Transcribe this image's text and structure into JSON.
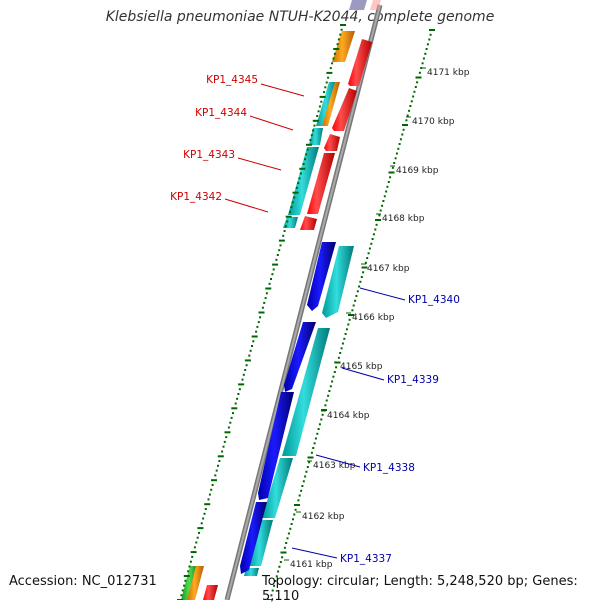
{
  "title": "Klebsiella pneumoniae NTUH-K2044, complete genome",
  "accession": "Accession: NC_012731",
  "topology": "Topology: circular; Length: 5,248,520 bp; Genes: 5,110",
  "ticks": [
    "4171 kbp",
    "4170 kbp",
    "4169 kbp",
    "4168 kbp",
    "4167 kbp",
    "4166 kbp",
    "4165 kbp",
    "4164 kbp",
    "4163 kbp",
    "4162 kbp",
    "4161 kbp"
  ],
  "left_labels": [
    "KP1_4345",
    "KP1_4344",
    "KP1_4343",
    "KP1_4342"
  ],
  "right_labels": [
    "KP1_4340",
    "KP1_4339",
    "KP1_4338",
    "KP1_4337"
  ],
  "colors": {
    "forward_cds": "#ff0000",
    "reverse_cds": "#0000ff",
    "cds_cyan": "#00cccc",
    "cds_orange": "#ff9900",
    "cds_green": "#33cc33",
    "tick_green": "#006600",
    "left_label": "#cc0000",
    "right_label": "#0000aa",
    "backbone": "#888888"
  }
}
